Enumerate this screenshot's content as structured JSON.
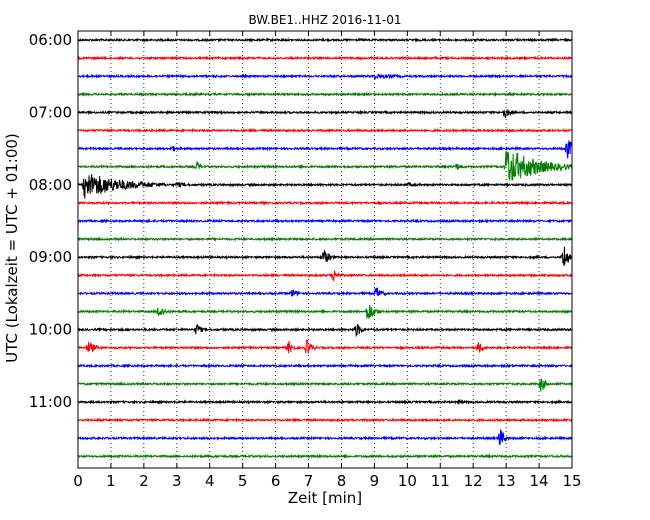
{
  "chart_data": {
    "type": "line",
    "title": "BW.BE1..HHZ 2016-11-01",
    "xlabel": "Zeit  [min]",
    "ylabel": "UTC (Lokalzeit = UTC + 01:00)",
    "xlim": [
      0,
      15
    ],
    "x_ticks": [
      0,
      1,
      2,
      3,
      4,
      5,
      6,
      7,
      8,
      9,
      10,
      11,
      12,
      13,
      14,
      15
    ],
    "x_tick_labels": [
      "0",
      "1",
      "2",
      "3",
      "4",
      "5",
      "6",
      "7",
      "8",
      "9",
      "10",
      "11",
      "12",
      "13",
      "14",
      "15"
    ],
    "y_tick_labels": [
      "06:00",
      "07:00",
      "08:00",
      "09:00",
      "10:00",
      "11:00"
    ],
    "grid": "vertical dotted",
    "trace_colors": [
      "#000000",
      "#ff0000",
      "#0000ff",
      "#007f00"
    ],
    "traces": [
      {
        "start": "06:00",
        "events": []
      },
      {
        "start": "06:15",
        "events": []
      },
      {
        "start": "06:30",
        "events": [
          {
            "t": 9.0,
            "amp": 3,
            "dur": 1.8
          }
        ]
      },
      {
        "start": "06:45",
        "events": []
      },
      {
        "start": "07:00",
        "events": [
          {
            "t": 12.95,
            "amp": 7,
            "dur": 0.35
          }
        ]
      },
      {
        "start": "07:15",
        "events": []
      },
      {
        "start": "07:30",
        "events": [
          {
            "t": 2.85,
            "amp": 4,
            "dur": 0.3
          },
          {
            "t": 14.85,
            "amp": 12,
            "dur": 0.4
          }
        ]
      },
      {
        "start": "07:45",
        "events": [
          {
            "t": 3.6,
            "amp": 6,
            "dur": 0.3
          },
          {
            "t": 11.5,
            "amp": 4,
            "dur": 0.4
          },
          {
            "t": 13.0,
            "amp": 20,
            "dur": 2.0
          }
        ]
      },
      {
        "start": "08:00",
        "events": [
          {
            "t": 0.2,
            "amp": 14,
            "dur": 2.5
          },
          {
            "t": 3.0,
            "amp": 3,
            "dur": 0.8
          },
          {
            "t": 10.0,
            "amp": 2,
            "dur": 1.5
          }
        ]
      },
      {
        "start": "08:15",
        "events": []
      },
      {
        "start": "08:30",
        "events": []
      },
      {
        "start": "08:45",
        "events": []
      },
      {
        "start": "09:00",
        "events": [
          {
            "t": 7.45,
            "amp": 9,
            "dur": 0.4
          },
          {
            "t": 14.75,
            "amp": 15,
            "dur": 0.3
          }
        ]
      },
      {
        "start": "09:15",
        "events": [
          {
            "t": 7.75,
            "amp": 7,
            "dur": 0.35
          }
        ]
      },
      {
        "start": "09:30",
        "events": [
          {
            "t": 6.5,
            "amp": 5,
            "dur": 0.4
          },
          {
            "t": 9.05,
            "amp": 8,
            "dur": 0.35
          }
        ]
      },
      {
        "start": "09:45",
        "events": [
          {
            "t": 2.45,
            "amp": 8,
            "dur": 0.35
          },
          {
            "t": 8.8,
            "amp": 12,
            "dur": 0.4
          }
        ]
      },
      {
        "start": "10:00",
        "events": [
          {
            "t": 3.6,
            "amp": 7,
            "dur": 0.3
          },
          {
            "t": 8.45,
            "amp": 8,
            "dur": 0.35
          }
        ]
      },
      {
        "start": "10:15",
        "events": [
          {
            "t": 0.3,
            "amp": 7,
            "dur": 0.5
          },
          {
            "t": 6.4,
            "amp": 7,
            "dur": 0.3
          },
          {
            "t": 6.95,
            "amp": 9,
            "dur": 0.35
          },
          {
            "t": 12.15,
            "amp": 7,
            "dur": 0.35
          }
        ]
      },
      {
        "start": "10:30",
        "events": []
      },
      {
        "start": "10:45",
        "events": [
          {
            "t": 14.05,
            "amp": 8,
            "dur": 0.35
          }
        ]
      },
      {
        "start": "11:00",
        "events": [
          {
            "t": 11.55,
            "amp": 3,
            "dur": 0.4
          }
        ]
      },
      {
        "start": "11:15",
        "events": []
      },
      {
        "start": "11:30",
        "events": [
          {
            "t": 12.8,
            "amp": 12,
            "dur": 0.3
          }
        ]
      },
      {
        "start": "11:45",
        "events": []
      }
    ]
  }
}
